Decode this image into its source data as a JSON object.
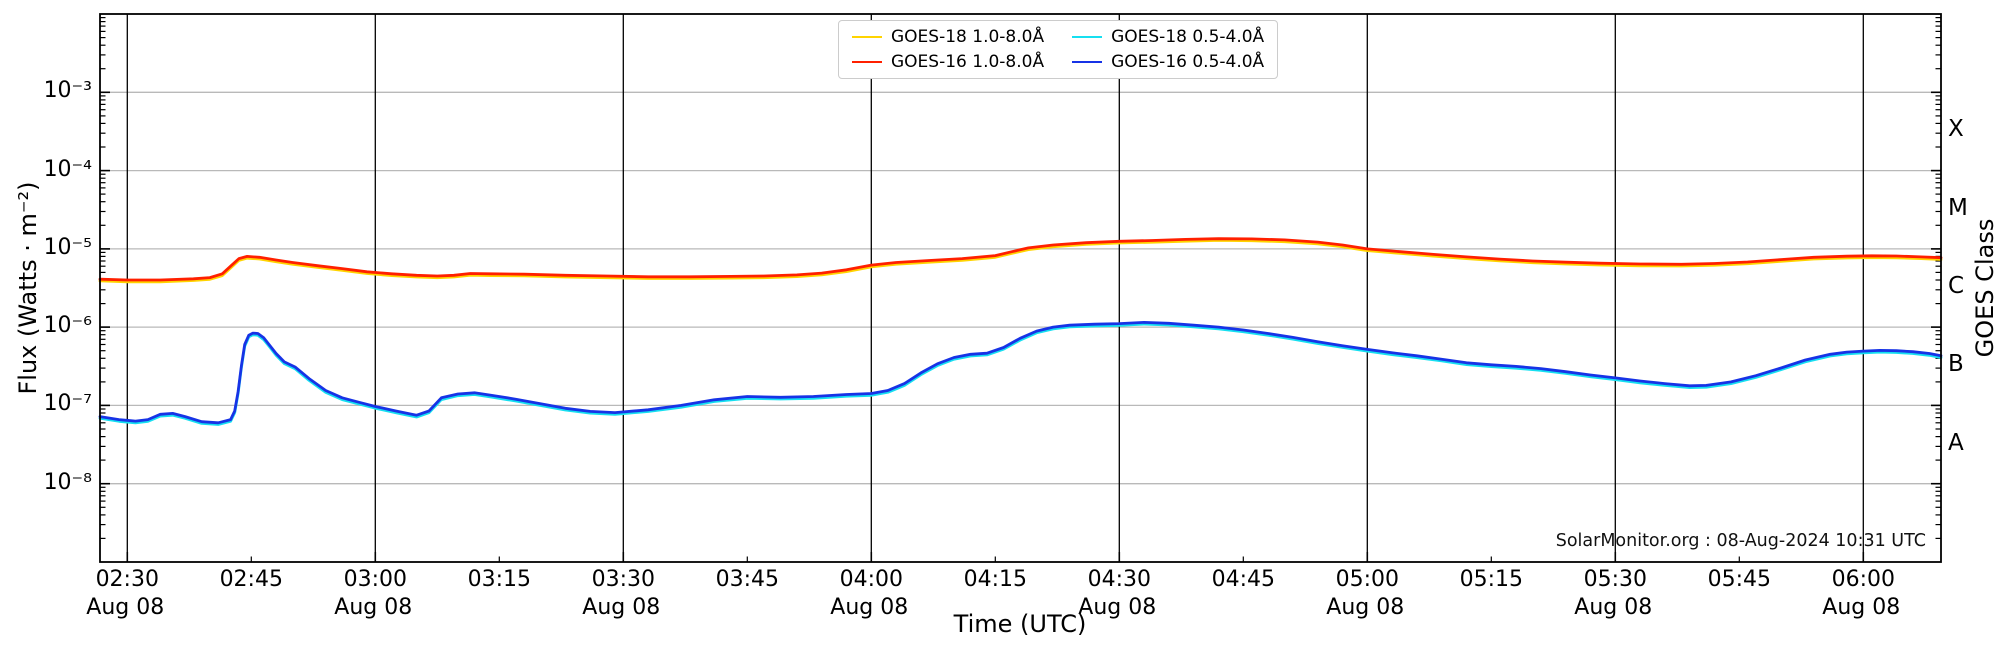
{
  "watermark": "SolarMonitor.org : 08-Aug-2024 10:31 UTC",
  "legend": {
    "items": [
      {
        "label": "GOES-18 1.0-8.0Å",
        "color": "#ffd400"
      },
      {
        "label": "GOES-16 1.0-8.0Å",
        "color": "#ff2000"
      },
      {
        "label": "GOES-18 0.5-4.0Å",
        "color": "#16dff0"
      },
      {
        "label": "GOES-16 0.5-4.0Å",
        "color": "#1733e6"
      }
    ]
  },
  "chart_data": {
    "type": "line",
    "xlabel": "Time (UTC)",
    "ylabel_left": "Flux (Watts · m⁻²)",
    "ylabel_right": "GOES Class",
    "x_axis": {
      "units": "minutes-after-midnight UTC on 08-Aug-2024",
      "range": [
        146.7,
        369.4
      ],
      "ticks": [
        {
          "minute": 150,
          "label": "02:30",
          "date": "Aug 08",
          "major": true
        },
        {
          "minute": 165,
          "label": "02:45",
          "major": false
        },
        {
          "minute": 180,
          "label": "03:00",
          "date": "Aug 08",
          "major": true
        },
        {
          "minute": 195,
          "label": "03:15",
          "major": false
        },
        {
          "minute": 210,
          "label": "03:30",
          "date": "Aug 08",
          "major": true
        },
        {
          "minute": 225,
          "label": "03:45",
          "major": false
        },
        {
          "minute": 240,
          "label": "04:00",
          "date": "Aug 08",
          "major": true
        },
        {
          "minute": 255,
          "label": "04:15",
          "major": false
        },
        {
          "minute": 270,
          "label": "04:30",
          "date": "Aug 08",
          "major": true
        },
        {
          "minute": 285,
          "label": "04:45",
          "major": false
        },
        {
          "minute": 300,
          "label": "05:00",
          "date": "Aug 08",
          "major": true
        },
        {
          "minute": 315,
          "label": "05:15",
          "major": false
        },
        {
          "minute": 330,
          "label": "05:30",
          "date": "Aug 08",
          "major": true
        },
        {
          "minute": 345,
          "label": "05:45",
          "major": false
        },
        {
          "minute": 360,
          "label": "06:00",
          "date": "Aug 08",
          "major": true
        }
      ]
    },
    "y_axis": {
      "scale": "log10",
      "log_range": [
        -9,
        -2
      ],
      "major_ticks": [
        {
          "exp": -3,
          "label": "10⁻³"
        },
        {
          "exp": -4,
          "label": "10⁻⁴"
        },
        {
          "exp": -5,
          "label": "10⁻⁵"
        },
        {
          "exp": -6,
          "label": "10⁻⁶"
        },
        {
          "exp": -7,
          "label": "10⁻⁷"
        },
        {
          "exp": -8,
          "label": "10⁻⁸"
        }
      ]
    },
    "right_class_labels": [
      {
        "label": "X",
        "log_center": -3.5
      },
      {
        "label": "M",
        "log_center": -4.5
      },
      {
        "label": "C",
        "log_center": -5.5
      },
      {
        "label": "B",
        "log_center": -6.5
      },
      {
        "label": "A",
        "log_center": -7.5
      }
    ],
    "grid": {
      "vertical_color": "#000000",
      "horizontal_color": "#b9b9b9"
    },
    "series": [
      {
        "name": "GOES-18 1.0-8.0Å",
        "color": "#ffd400",
        "z": 1,
        "derived_from": "GOES-16 1.0-8.0Å",
        "scale": 0.95,
        "note": "hidden almost entirely behind GOES-16 1.0-8.0Å trace"
      },
      {
        "name": "GOES-18 0.5-4.0Å",
        "color": "#16dff0",
        "z": 2,
        "derived_from": "GOES-16 0.5-4.0Å",
        "scale": 0.95,
        "note": "hidden almost entirely behind GOES-16 0.5-4.0Å trace"
      },
      {
        "name": "GOES-16 1.0-8.0Å",
        "color": "#ff2000",
        "z": 3,
        "points": [
          [
            146.7,
            4.1e-06
          ],
          [
            150,
            4e-06
          ],
          [
            154,
            4e-06
          ],
          [
            158,
            4.15e-06
          ],
          [
            160,
            4.3e-06
          ],
          [
            161.5,
            4.8e-06
          ],
          [
            162.5,
            6e-06
          ],
          [
            163.5,
            7.5e-06
          ],
          [
            164.5,
            8e-06
          ],
          [
            166,
            7.8e-06
          ],
          [
            168,
            7.2e-06
          ],
          [
            170,
            6.7e-06
          ],
          [
            173,
            6.1e-06
          ],
          [
            176,
            5.6e-06
          ],
          [
            179,
            5.1e-06
          ],
          [
            182,
            4.8e-06
          ],
          [
            185,
            4.6e-06
          ],
          [
            187.5,
            4.5e-06
          ],
          [
            189.5,
            4.6e-06
          ],
          [
            191.5,
            4.85e-06
          ],
          [
            194,
            4.8e-06
          ],
          [
            198,
            4.75e-06
          ],
          [
            203,
            4.6e-06
          ],
          [
            208,
            4.5e-06
          ],
          [
            213,
            4.4e-06
          ],
          [
            218,
            4.4e-06
          ],
          [
            223,
            4.45e-06
          ],
          [
            227,
            4.5e-06
          ],
          [
            231,
            4.65e-06
          ],
          [
            234,
            4.9e-06
          ],
          [
            237,
            5.4e-06
          ],
          [
            240,
            6.2e-06
          ],
          [
            243,
            6.7e-06
          ],
          [
            247,
            7.1e-06
          ],
          [
            251,
            7.5e-06
          ],
          [
            255,
            8.2e-06
          ],
          [
            257,
            9.2e-06
          ],
          [
            259,
            1.03e-05
          ],
          [
            262,
            1.12e-05
          ],
          [
            266,
            1.2e-05
          ],
          [
            270,
            1.25e-05
          ],
          [
            274,
            1.28e-05
          ],
          [
            278,
            1.32e-05
          ],
          [
            282,
            1.35e-05
          ],
          [
            286,
            1.34e-05
          ],
          [
            290,
            1.3e-05
          ],
          [
            294,
            1.22e-05
          ],
          [
            297,
            1.12e-05
          ],
          [
            300,
            1e-05
          ],
          [
            304,
            9.2e-06
          ],
          [
            308,
            8.5e-06
          ],
          [
            312,
            7.9e-06
          ],
          [
            316,
            7.4e-06
          ],
          [
            320,
            7e-06
          ],
          [
            324,
            6.75e-06
          ],
          [
            328,
            6.55e-06
          ],
          [
            333,
            6.4e-06
          ],
          [
            338,
            6.35e-06
          ],
          [
            342,
            6.5e-06
          ],
          [
            346,
            6.8e-06
          ],
          [
            350,
            7.3e-06
          ],
          [
            354,
            7.8e-06
          ],
          [
            358,
            8.05e-06
          ],
          [
            361,
            8.15e-06
          ],
          [
            364,
            8.1e-06
          ],
          [
            367,
            7.9e-06
          ],
          [
            369.4,
            7.7e-06
          ]
        ]
      },
      {
        "name": "GOES-16 0.5-4.0Å",
        "color": "#1733e6",
        "z": 4,
        "points": [
          [
            146.7,
            7.2e-08
          ],
          [
            149,
            6.6e-08
          ],
          [
            151,
            6.3e-08
          ],
          [
            152.5,
            6.6e-08
          ],
          [
            154,
            7.7e-08
          ],
          [
            155.5,
            7.9e-08
          ],
          [
            157,
            7.2e-08
          ],
          [
            159,
            6.2e-08
          ],
          [
            161,
            6e-08
          ],
          [
            162.5,
            6.6e-08
          ],
          [
            163,
            8.5e-08
          ],
          [
            163.4,
            1.5e-07
          ],
          [
            163.8,
            3.2e-07
          ],
          [
            164.2,
            6e-07
          ],
          [
            164.7,
            7.9e-07
          ],
          [
            165.2,
            8.4e-07
          ],
          [
            165.8,
            8.3e-07
          ],
          [
            166.5,
            7.3e-07
          ],
          [
            167.2,
            5.9e-07
          ],
          [
            168,
            4.6e-07
          ],
          [
            169,
            3.6e-07
          ],
          [
            170.3,
            3.1e-07
          ],
          [
            172,
            2.2e-07
          ],
          [
            174,
            1.55e-07
          ],
          [
            176,
            1.25e-07
          ],
          [
            178,
            1.1e-07
          ],
          [
            180,
            9.7e-08
          ],
          [
            182.5,
            8.5e-08
          ],
          [
            185,
            7.5e-08
          ],
          [
            186.5,
            8.5e-08
          ],
          [
            188,
            1.25e-07
          ],
          [
            190,
            1.4e-07
          ],
          [
            192,
            1.45e-07
          ],
          [
            194,
            1.35e-07
          ],
          [
            197,
            1.2e-07
          ],
          [
            200,
            1.05e-07
          ],
          [
            203,
            9.2e-08
          ],
          [
            206,
            8.4e-08
          ],
          [
            209,
            8.1e-08
          ],
          [
            213,
            8.8e-08
          ],
          [
            217,
            1e-07
          ],
          [
            221,
            1.18e-07
          ],
          [
            225,
            1.3e-07
          ],
          [
            229,
            1.27e-07
          ],
          [
            233,
            1.3e-07
          ],
          [
            237,
            1.38e-07
          ],
          [
            240,
            1.42e-07
          ],
          [
            242,
            1.55e-07
          ],
          [
            244,
            1.9e-07
          ],
          [
            246,
            2.6e-07
          ],
          [
            248,
            3.4e-07
          ],
          [
            250,
            4.1e-07
          ],
          [
            252,
            4.5e-07
          ],
          [
            254,
            4.65e-07
          ],
          [
            256,
            5.5e-07
          ],
          [
            258,
            7.2e-07
          ],
          [
            260,
            8.9e-07
          ],
          [
            262,
            1e-06
          ],
          [
            264,
            1.06e-06
          ],
          [
            267,
            1.09e-06
          ],
          [
            270,
            1.11e-06
          ],
          [
            273,
            1.15e-06
          ],
          [
            276,
            1.12e-06
          ],
          [
            279,
            1.06e-06
          ],
          [
            282,
            1e-06
          ],
          [
            285,
            9.2e-07
          ],
          [
            288,
            8.3e-07
          ],
          [
            291,
            7.4e-07
          ],
          [
            294,
            6.5e-07
          ],
          [
            297,
            5.8e-07
          ],
          [
            300,
            5.2e-07
          ],
          [
            303,
            4.7e-07
          ],
          [
            306,
            4.3e-07
          ],
          [
            309,
            3.9e-07
          ],
          [
            312,
            3.5e-07
          ],
          [
            315,
            3.3e-07
          ],
          [
            318,
            3.15e-07
          ],
          [
            321,
            2.95e-07
          ],
          [
            324,
            2.7e-07
          ],
          [
            327,
            2.45e-07
          ],
          [
            330,
            2.25e-07
          ],
          [
            333,
            2.05e-07
          ],
          [
            336,
            1.9e-07
          ],
          [
            339,
            1.78e-07
          ],
          [
            341,
            1.8e-07
          ],
          [
            344,
            2e-07
          ],
          [
            347,
            2.4e-07
          ],
          [
            350,
            3e-07
          ],
          [
            353,
            3.8e-07
          ],
          [
            356,
            4.5e-07
          ],
          [
            358,
            4.8e-07
          ],
          [
            360,
            4.95e-07
          ],
          [
            362,
            5.05e-07
          ],
          [
            364,
            5e-07
          ],
          [
            366,
            4.85e-07
          ],
          [
            368,
            4.6e-07
          ],
          [
            369.4,
            4.3e-07
          ]
        ]
      }
    ]
  }
}
